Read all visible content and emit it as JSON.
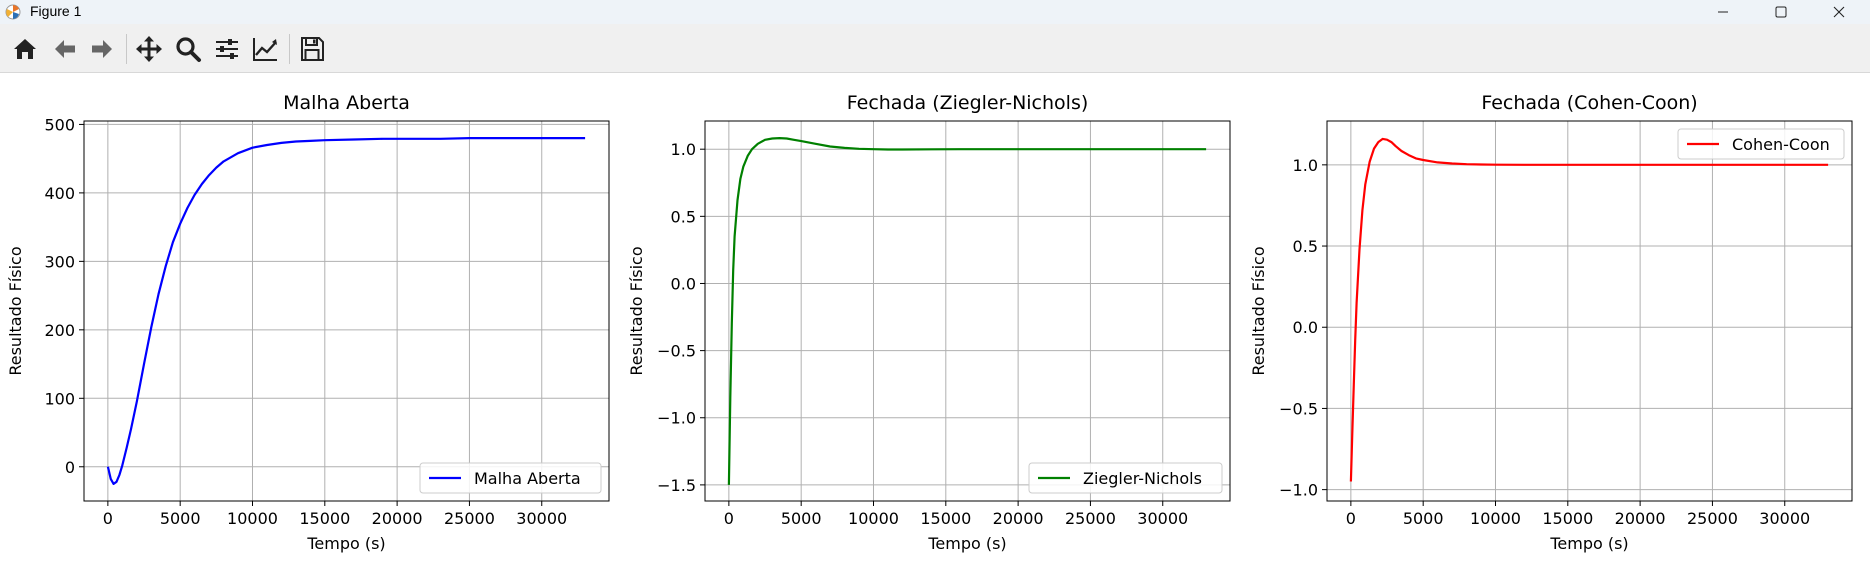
{
  "window": {
    "title": "Figure 1",
    "controls": [
      "minimize",
      "maximize",
      "close"
    ]
  },
  "toolbar": {
    "tools": [
      "home-icon",
      "back-icon",
      "forward-icon",
      "pan-icon",
      "zoom-icon",
      "configure-subplots-icon",
      "edit-axis-icon",
      "save-icon"
    ]
  },
  "chart_data": [
    {
      "type": "line",
      "title": "Malha Aberta",
      "xlabel": "Tempo (s)",
      "ylabel": "Resultado Físico",
      "xlim": [
        -1650,
        34650
      ],
      "ylim": [
        -50,
        505
      ],
      "xticks": [
        0,
        5000,
        10000,
        15000,
        20000,
        25000,
        30000
      ],
      "xtick_labels": [
        "0",
        "5000",
        "10000",
        "15000",
        "20000",
        "25000",
        "30000"
      ],
      "yticks": [
        0,
        100,
        200,
        300,
        400,
        500
      ],
      "ytick_labels": [
        "0",
        "100",
        "200",
        "300",
        "400",
        "500"
      ],
      "grid": true,
      "legend": {
        "position": "lower-right"
      },
      "series": [
        {
          "name": "Malha Aberta",
          "color": "#0000ff",
          "x": [
            0,
            200,
            400,
            600,
            800,
            1000,
            1300,
            1600,
            2000,
            2500,
            3000,
            3500,
            4000,
            4500,
            5000,
            5500,
            6000,
            6500,
            7000,
            7500,
            8000,
            9000,
            10000,
            11000,
            12000,
            13000,
            14000,
            15000,
            17000,
            19000,
            21000,
            23000,
            25000,
            27000,
            29000,
            31000,
            33000
          ],
          "y": [
            0,
            -18,
            -25,
            -22,
            -12,
            2,
            28,
            55,
            95,
            150,
            204,
            252,
            293,
            328,
            355,
            378,
            397,
            413,
            426,
            437,
            446,
            458,
            466,
            470,
            473,
            475,
            476,
            477,
            478,
            479,
            479,
            479,
            480,
            480,
            480,
            480,
            480
          ]
        }
      ]
    },
    {
      "type": "line",
      "title": "Fechada (Ziegler-Nichols)",
      "xlabel": "Tempo (s)",
      "ylabel": "Resultado Físico",
      "xlim": [
        -1650,
        34650
      ],
      "ylim": [
        -1.62,
        1.21
      ],
      "xticks": [
        0,
        5000,
        10000,
        15000,
        20000,
        25000,
        30000
      ],
      "xtick_labels": [
        "0",
        "5000",
        "10000",
        "15000",
        "20000",
        "25000",
        "30000"
      ],
      "yticks": [
        -1.5,
        -1.0,
        -0.5,
        0.0,
        0.5,
        1.0
      ],
      "ytick_labels": [
        "−1.5",
        "−1.0",
        "−0.5",
        "0.0",
        "0.5",
        "1.0"
      ],
      "grid": true,
      "legend": {
        "position": "lower-right"
      },
      "series": [
        {
          "name": "Ziegler-Nichols",
          "color": "#008000",
          "x": [
            0,
            100,
            200,
            300,
            400,
            600,
            800,
            1000,
            1300,
            1600,
            2000,
            2500,
            3000,
            3500,
            4000,
            4500,
            5000,
            6000,
            7000,
            8000,
            9000,
            10000,
            11000,
            12000,
            14000,
            16000,
            20000,
            25000,
            30000,
            33000
          ],
          "y": [
            -1.5,
            -0.85,
            -0.3,
            0.1,
            0.35,
            0.62,
            0.78,
            0.87,
            0.95,
            1.0,
            1.04,
            1.07,
            1.08,
            1.083,
            1.08,
            1.07,
            1.06,
            1.04,
            1.02,
            1.01,
            1.003,
            1.0,
            0.998,
            0.998,
            0.999,
            1.0,
            1.0,
            1.0,
            1.0,
            1.0
          ]
        }
      ]
    },
    {
      "type": "line",
      "title": "Fechada (Cohen-Coon)",
      "xlabel": "Tempo (s)",
      "ylabel": "Resultado Físico",
      "xlim": [
        -1650,
        34650
      ],
      "ylim": [
        -1.07,
        1.27
      ],
      "xticks": [
        0,
        5000,
        10000,
        15000,
        20000,
        25000,
        30000
      ],
      "xtick_labels": [
        "0",
        "5000",
        "10000",
        "15000",
        "20000",
        "25000",
        "30000"
      ],
      "yticks": [
        -1.0,
        -0.5,
        0.0,
        0.5,
        1.0
      ],
      "ytick_labels": [
        "−1.0",
        "−0.5",
        "0.0",
        "0.5",
        "1.0"
      ],
      "grid": true,
      "legend": {
        "position": "upper-right"
      },
      "series": [
        {
          "name": "Cohen-Coon",
          "color": "#ff0000",
          "x": [
            0,
            100,
            200,
            300,
            400,
            600,
            800,
            1000,
            1300,
            1600,
            1900,
            2200,
            2500,
            2800,
            3100,
            3500,
            4000,
            4500,
            5000,
            6000,
            7000,
            8000,
            9000,
            10000,
            12000,
            15000,
            20000,
            25000,
            30000,
            33000
          ],
          "y": [
            -0.95,
            -0.65,
            -0.35,
            -0.08,
            0.15,
            0.48,
            0.72,
            0.88,
            1.02,
            1.1,
            1.14,
            1.16,
            1.155,
            1.14,
            1.115,
            1.085,
            1.06,
            1.04,
            1.03,
            1.015,
            1.008,
            1.004,
            1.002,
            1.001,
            1.0,
            1.0,
            1.0,
            1.0,
            1.0,
            1.0
          ]
        }
      ]
    }
  ]
}
